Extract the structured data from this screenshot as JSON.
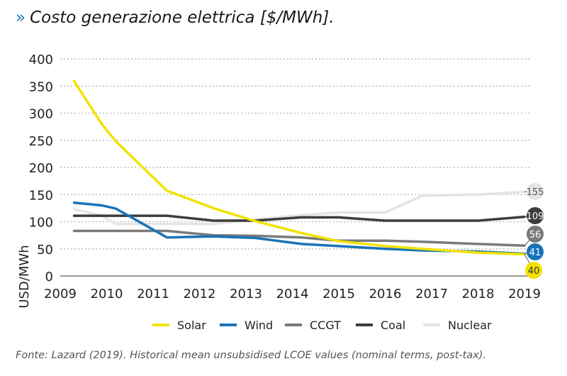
{
  "header": {
    "marker": "»",
    "title": "Costo generazione elettrica [$/MWh]."
  },
  "footer": {
    "source": "Fonte: Lazard (2019). Historical mean unsubsidised LCOE values (nominal terms, post-tax)."
  },
  "chart_data": {
    "type": "line",
    "title": "Costo generazione elettrica [$/MWh].",
    "xlabel": "",
    "ylabel": "USD/MWh",
    "x": [
      2009.3,
      2009.9,
      2010.2,
      2011.3,
      2012.3,
      2013.2,
      2014.2,
      2015.0,
      2016.0,
      2016.8,
      2018.0,
      2019.0
    ],
    "xticks": [
      "2009",
      "2010",
      "2011",
      "2012",
      "2013",
      "2014",
      "2015",
      "2016",
      "2017",
      "2018",
      "2019"
    ],
    "xlim": [
      2009,
      2019
    ],
    "ylim": [
      0,
      400
    ],
    "yticks": [
      0,
      50,
      100,
      150,
      200,
      250,
      300,
      350,
      400
    ],
    "grid": true,
    "legend": "bottom",
    "series": [
      {
        "name": "Solar",
        "color": "#f2e200",
        "label_text_color": "#333333",
        "end_label": "40",
        "values": [
          359,
          279,
          248,
          157,
          125,
          101,
          79,
          64,
          55,
          50,
          43,
          40
        ]
      },
      {
        "name": "Wind",
        "color": "#1a73b8",
        "label_text_color": "#ffffff",
        "end_label": "41",
        "values": [
          135,
          130,
          124,
          71,
          73,
          70,
          59,
          55,
          50,
          47,
          45,
          41
        ]
      },
      {
        "name": "CCGT",
        "color": "#7a7a7a",
        "label_text_color": "#ffffff",
        "end_label": "56",
        "values": [
          83,
          83,
          83,
          83,
          75,
          74,
          71,
          65,
          65,
          63,
          59,
          56
        ]
      },
      {
        "name": "Coal",
        "color": "#3c3c3c",
        "label_text_color": "#ffffff",
        "end_label": "109",
        "values": [
          111,
          111,
          111,
          111,
          102,
          102,
          108,
          108,
          102,
          102,
          102,
          109
        ]
      },
      {
        "name": "Nuclear",
        "color": "#e4e4e4",
        "label_text_color": "#555555",
        "end_label": "155",
        "values": [
          123,
          111,
          96,
          96,
          96,
          104,
          112,
          117,
          117,
          148,
          150,
          155
        ]
      }
    ]
  }
}
